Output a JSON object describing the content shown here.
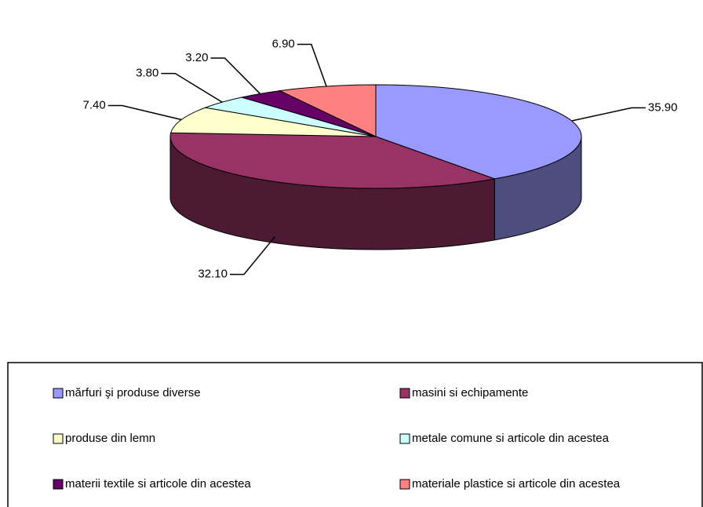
{
  "chart_data": {
    "type": "pie",
    "categories": [
      "mărfuri şi produse diverse",
      "masini si echipamente",
      "produse din lemn",
      "metale comune si articole din acestea",
      "materii textile si articole din acestea",
      "materiale plastice si articole din acestea"
    ],
    "values": [
      35.9,
      32.1,
      7.4,
      3.8,
      3.2,
      6.9
    ],
    "value_labels": [
      "35.90",
      "32.10",
      "7.40",
      "3.80",
      "3.20",
      "6.90"
    ],
    "colors": [
      "#9999ff",
      "#993366",
      "#ffffcc",
      "#ccffff",
      "#660066",
      "#ff8080"
    ],
    "legend": "bottom"
  }
}
